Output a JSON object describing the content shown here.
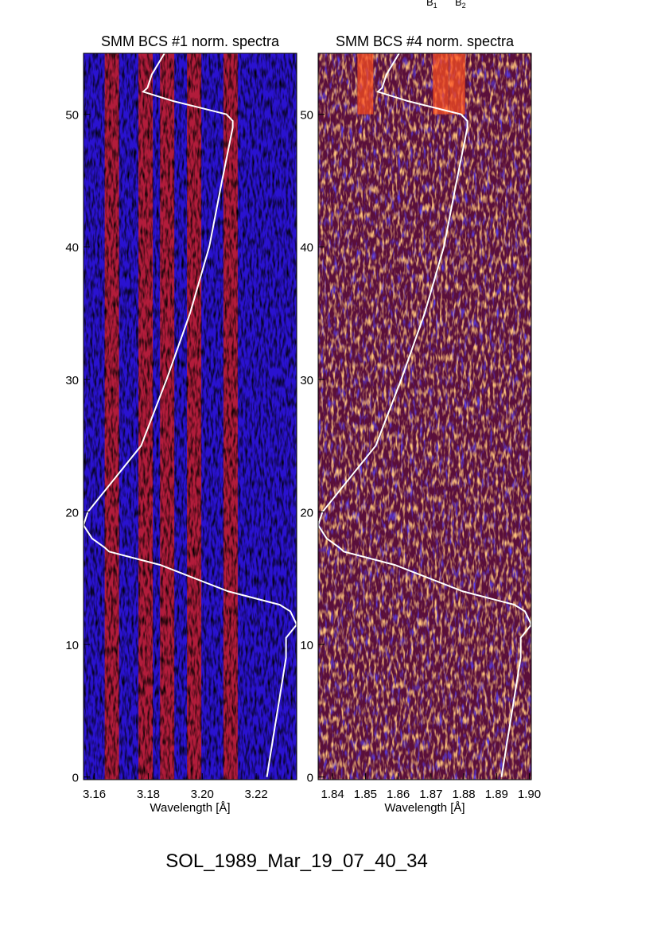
{
  "header_labels": [
    "B",
    "B"
  ],
  "header_subscripts": [
    "1",
    "2"
  ],
  "footer_title": "SOL_1989_Mar_19_07_40_34",
  "colors": {
    "background": "#1a10d8",
    "line_band": "#e0200a",
    "noise_dark": "#000000",
    "curve": "#ffffff"
  },
  "chart_data": [
    {
      "type": "heatmap",
      "title": "SMM BCS #1 norm. spectra",
      "xlabel": "Wavelength [Å]",
      "ylabel": "",
      "xlim": [
        3.156,
        3.235
      ],
      "ylim": [
        -0.2,
        54.6
      ],
      "xticks": [
        "3.16",
        "3.18",
        "3.20",
        "3.22"
      ],
      "xtick_values": [
        3.16,
        3.18,
        3.2,
        3.22
      ],
      "yticks": [
        "0",
        "10",
        "20",
        "30",
        "40",
        "50"
      ],
      "yticks_values": [
        0,
        10,
        20,
        30,
        40,
        50
      ],
      "emission_lines": [
        3.1665,
        3.179,
        3.187,
        3.197,
        3.2105
      ],
      "overlay_curve": {
        "time": [
          0,
          3,
          6,
          9,
          10.5,
          11.5,
          12.5,
          13,
          14,
          15,
          16,
          17,
          17.3,
          18,
          19,
          20,
          22,
          25,
          30,
          35,
          40,
          45,
          49,
          49.5,
          50,
          51,
          51.7,
          52,
          53,
          54.6
        ],
        "relative_flux": [
          0.86,
          0.89,
          0.92,
          0.95,
          0.95,
          1.0,
          0.97,
          0.92,
          0.68,
          0.52,
          0.36,
          0.12,
          0.1,
          0.04,
          0.0,
          0.02,
          0.12,
          0.27,
          0.39,
          0.5,
          0.59,
          0.65,
          0.7,
          0.7,
          0.67,
          0.42,
          0.28,
          0.3,
          0.32,
          0.38
        ]
      }
    },
    {
      "type": "heatmap",
      "title": "SMM BCS #4 norm. spectra",
      "xlabel": "Wavelength [Å]",
      "ylabel": "",
      "xlim": [
        1.8356,
        1.9006
      ],
      "ylim": [
        -0.2,
        54.6
      ],
      "xticks": [
        "1.84",
        "1.85",
        "1.86",
        "1.87",
        "1.88",
        "1.89",
        "1.90"
      ],
      "xtick_values": [
        1.84,
        1.85,
        1.86,
        1.87,
        1.88,
        1.89,
        1.9
      ],
      "yticks": [
        "0",
        "10",
        "20",
        "30",
        "40",
        "50"
      ],
      "yticks_values": [
        0,
        10,
        20,
        30,
        40,
        50
      ],
      "emission_lines": [
        1.85,
        1.873,
        1.878
      ],
      "emission_lines_time_range": [
        50,
        54.6
      ],
      "overlay_curve": {
        "time": [
          0,
          3,
          6,
          9,
          10.5,
          11.5,
          12.5,
          13,
          14,
          15,
          16,
          17,
          17.3,
          18,
          19,
          20,
          22,
          25,
          30,
          35,
          40,
          45,
          49,
          49.5,
          50,
          51,
          51.7,
          52,
          53,
          54.6
        ],
        "relative_flux": [
          0.86,
          0.89,
          0.92,
          0.95,
          0.95,
          1.0,
          0.97,
          0.92,
          0.68,
          0.52,
          0.36,
          0.12,
          0.1,
          0.04,
          0.0,
          0.02,
          0.12,
          0.27,
          0.39,
          0.5,
          0.59,
          0.65,
          0.7,
          0.7,
          0.67,
          0.42,
          0.28,
          0.3,
          0.32,
          0.38
        ]
      }
    }
  ]
}
